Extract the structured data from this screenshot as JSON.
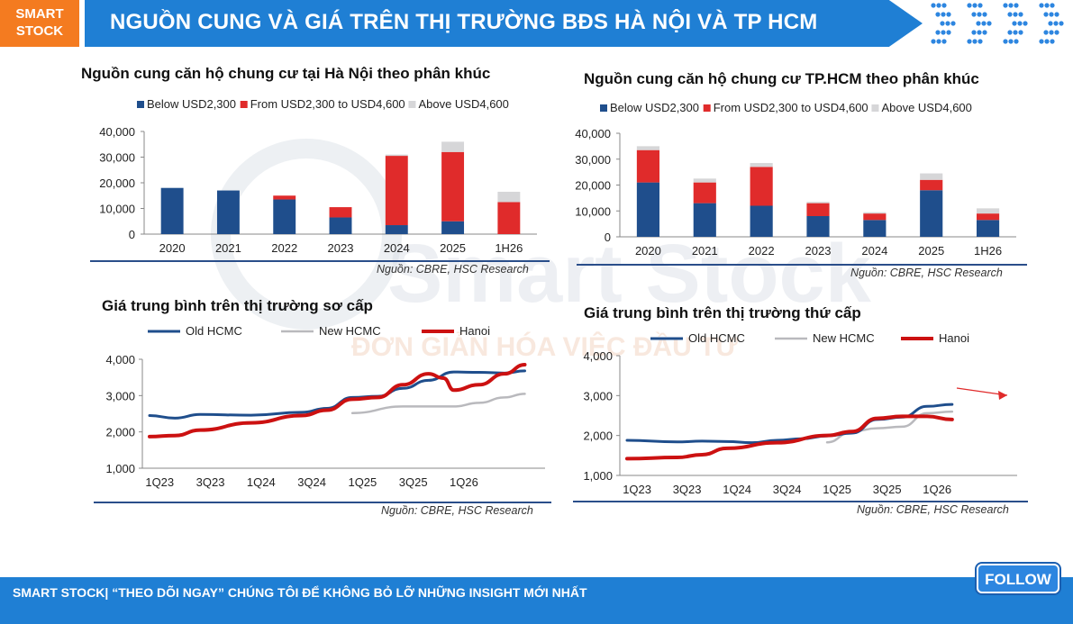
{
  "header": {
    "logo_line1": "SMART",
    "logo_line2": "STOCK",
    "title": "NGUỒN CUNG VÀ GIÁ TRÊN THỊ TRƯỜNG BĐS HÀ NỘI VÀ TP HCM"
  },
  "watermark": {
    "brand": "Smart Stock",
    "slogan": "ĐƠN GIẢN HÓA VIỆC ĐẦU TƯ"
  },
  "colors": {
    "navy": "#1f4e8c",
    "red": "#e02b2b",
    "grey": "#d6d6d8",
    "old_hcmc": "#1f4e8c",
    "new_hcmc": "#b9b9bd",
    "hanoi": "#cc1111",
    "accent": "#1f7fd4",
    "orange": "#f47b20"
  },
  "panels": {
    "p1": {
      "title": "Nguồn cung căn hộ chung cư tại Hà Nội theo phân khúc",
      "source": "Nguồn: CBRE, HSC Research"
    },
    "p2": {
      "title": "Nguồn cung căn hộ chung cư TP.HCM theo phân khúc",
      "source": "Nguồn: CBRE, HSC Research"
    },
    "p3": {
      "title": "Giá trung bình trên thị trường sơ cấp",
      "source": "Nguồn: CBRE, HSC Research"
    },
    "p4": {
      "title": "Giá trung bình trên thị trường thứ cấp",
      "source": "Nguồn: CBRE, HSC Research"
    }
  },
  "chart_data": [
    {
      "type": "bar",
      "stacked": true,
      "categories": [
        "2020",
        "2021",
        "2022",
        "2023",
        "2024",
        "2025",
        "1H26"
      ],
      "series": [
        {
          "name": "Below USD2,300",
          "values": [
            18000,
            17000,
            13500,
            6500,
            3500,
            5000,
            0
          ]
        },
        {
          "name": "From USD2,300 to USD4,600",
          "values": [
            0,
            0,
            1500,
            4000,
            27000,
            27000,
            12500
          ]
        },
        {
          "name": "Above USD4,600",
          "values": [
            0,
            0,
            0,
            0,
            500,
            4000,
            4000
          ]
        }
      ],
      "ylim": [
        0,
        40000
      ],
      "yticks": [
        "0",
        "10,000",
        "20,000",
        "30,000",
        "40,000"
      ],
      "legend": "top"
    },
    {
      "type": "bar",
      "stacked": true,
      "categories": [
        "2020",
        "2021",
        "2022",
        "2023",
        "2024",
        "2025",
        "1H26"
      ],
      "series": [
        {
          "name": "Below USD2,300",
          "values": [
            21000,
            13000,
            12000,
            8000,
            6500,
            18000,
            6500
          ]
        },
        {
          "name": "From USD2,300 to USD4,600",
          "values": [
            12500,
            8000,
            15000,
            5000,
            2500,
            4000,
            2500
          ]
        },
        {
          "name": "Above USD4,600",
          "values": [
            1500,
            1500,
            1500,
            500,
            500,
            2500,
            2000
          ]
        }
      ],
      "ylim": [
        0,
        40000
      ],
      "yticks": [
        "0",
        "10,000",
        "20,000",
        "30,000",
        "40,000"
      ],
      "legend": "top"
    },
    {
      "type": "line",
      "x_labels": [
        "1Q23",
        "3Q23",
        "1Q24",
        "3Q24",
        "1Q25",
        "3Q25",
        "1Q26"
      ],
      "series": [
        {
          "name": "Old HCMC",
          "points": [
            [
              0,
              2450
            ],
            [
              0.5,
              2380
            ],
            [
              1,
              2480
            ],
            [
              2,
              2460
            ],
            [
              3,
              2540
            ],
            [
              3.5,
              2650
            ],
            [
              4,
              2950
            ],
            [
              4.5,
              2980
            ],
            [
              5,
              3200
            ],
            [
              5.5,
              3420
            ],
            [
              6,
              3650
            ],
            [
              6.5,
              3640
            ],
            [
              7,
              3620
            ],
            [
              7.4,
              3680
            ]
          ]
        },
        {
          "name": "New HCMC",
          "points": [
            [
              4,
              2520
            ],
            [
              5,
              2700
            ],
            [
              6,
              2700
            ],
            [
              6.5,
              2800
            ],
            [
              7,
              2950
            ],
            [
              7.4,
              3050
            ]
          ]
        },
        {
          "name": "Hanoi",
          "points": [
            [
              0,
              1870
            ],
            [
              0.5,
              1900
            ],
            [
              1,
              2050
            ],
            [
              2,
              2250
            ],
            [
              3,
              2450
            ],
            [
              3.5,
              2600
            ],
            [
              4,
              2900
            ],
            [
              4.5,
              2950
            ],
            [
              5,
              3300
            ],
            [
              5.5,
              3600
            ],
            [
              5.8,
              3480
            ],
            [
              6,
              3150
            ],
            [
              6.5,
              3300
            ],
            [
              7,
              3600
            ],
            [
              7.4,
              3850
            ]
          ]
        }
      ],
      "ylim": [
        1000,
        4000
      ],
      "yticks": [
        "1,000",
        "2,000",
        "3,000",
        "4,000"
      ],
      "legend": "top"
    },
    {
      "type": "line",
      "x_labels": [
        "1Q23",
        "3Q23",
        "1Q24",
        "3Q24",
        "1Q25",
        "3Q25",
        "1Q26"
      ],
      "series": [
        {
          "name": "Old HCMC",
          "points": [
            [
              0,
              1880
            ],
            [
              1,
              1840
            ],
            [
              1.5,
              1860
            ],
            [
              2,
              1850
            ],
            [
              2.5,
              1820
            ],
            [
              3,
              1880
            ],
            [
              3.5,
              1920
            ],
            [
              4,
              1990
            ],
            [
              4.5,
              2060
            ],
            [
              5,
              2400
            ],
            [
              5.5,
              2460
            ],
            [
              6,
              2730
            ],
            [
              6.5,
              2780
            ]
          ]
        },
        {
          "name": "New HCMC",
          "points": [
            [
              4,
              1830
            ],
            [
              4.5,
              2100
            ],
            [
              5,
              2180
            ],
            [
              5.5,
              2220
            ],
            [
              6,
              2560
            ],
            [
              6.5,
              2600
            ]
          ]
        },
        {
          "name": "Hanoi",
          "points": [
            [
              0,
              1420
            ],
            [
              1,
              1450
            ],
            [
              1.5,
              1520
            ],
            [
              2,
              1680
            ],
            [
              3,
              1820
            ],
            [
              4,
              2000
            ],
            [
              4.5,
              2100
            ],
            [
              5,
              2430
            ],
            [
              5.5,
              2480
            ],
            [
              6,
              2480
            ],
            [
              6.5,
              2400
            ]
          ]
        }
      ],
      "ylim": [
        1000,
        4000
      ],
      "yticks": [
        "1,000",
        "2,000",
        "3,000",
        "4,000"
      ],
      "legend": "top"
    }
  ],
  "footer": {
    "text": "SMART STOCK| “THEO DÕI NGAY” CHÚNG TÔI ĐỂ KHÔNG BỎ LỠ NHỮNG INSIGHT MỚI NHẤT",
    "follow_label": "FOLLOW"
  }
}
